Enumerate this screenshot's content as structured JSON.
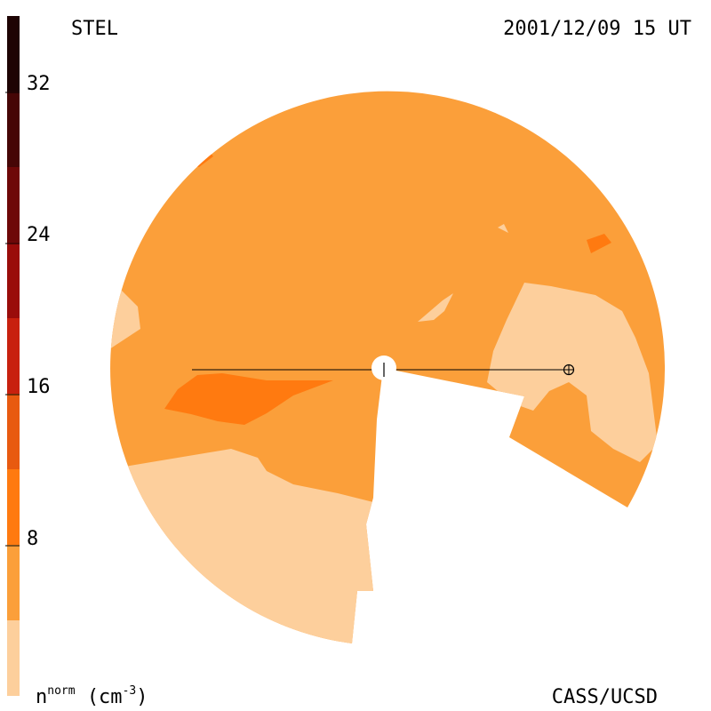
{
  "header": {
    "station": "STEL",
    "timestamp": "2001/12/09 15 UT"
  },
  "footer": {
    "credit": "CASS/UCSD",
    "unit_prefix": "n",
    "unit_superscript": "norm",
    "unit_paren": "(cm",
    "unit_exp": "-3",
    "unit_close": ")"
  },
  "colorbar": {
    "ticks": [
      "32",
      "24",
      "16",
      "8"
    ],
    "tick_values": [
      32,
      24,
      16,
      8
    ],
    "levels": [
      {
        "from": 0,
        "to": 4,
        "color": "#fdcf9c"
      },
      {
        "from": 4,
        "to": 8,
        "color": "#fb9f3a"
      },
      {
        "from": 8,
        "to": 12,
        "color": "#ff7a10"
      },
      {
        "from": 12,
        "to": 16,
        "color": "#e85a10"
      },
      {
        "from": 16,
        "to": 20,
        "color": "#c8200e"
      },
      {
        "from": 20,
        "to": 24,
        "color": "#9a0c0a"
      },
      {
        "from": 24,
        "to": 28,
        "color": "#6e0808"
      },
      {
        "from": 28,
        "to": 32,
        "color": "#460606"
      },
      {
        "from": 32,
        "to": 36,
        "color": "#1e0404"
      }
    ]
  },
  "map": {
    "colors": {
      "light": "#fdcf9c",
      "medium": "#fb9f3a",
      "strong": "#ff7a10"
    }
  }
}
